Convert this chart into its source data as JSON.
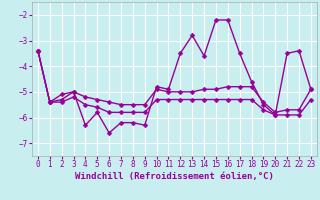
{
  "xlabel": "Windchill (Refroidissement éolien,°C)",
  "ylabel": "",
  "background_color": "#c8eef0",
  "grid_color": "#ffffff",
  "line_color": "#990099",
  "x_values": [
    0,
    1,
    2,
    3,
    4,
    5,
    6,
    7,
    8,
    9,
    10,
    11,
    12,
    13,
    14,
    15,
    16,
    17,
    18,
    19,
    20,
    21,
    22,
    23
  ],
  "line1": [
    -3.4,
    -5.4,
    -5.3,
    -5.0,
    -6.3,
    -5.8,
    -6.6,
    -6.2,
    -6.2,
    -6.3,
    -4.8,
    -4.9,
    -3.5,
    -2.8,
    -3.6,
    -2.2,
    -2.2,
    -3.5,
    -4.6,
    -5.5,
    -5.9,
    -3.5,
    -3.4,
    -4.9
  ],
  "line2": [
    -3.4,
    -5.4,
    -5.1,
    -5.0,
    -5.2,
    -5.3,
    -5.4,
    -5.5,
    -5.5,
    -5.5,
    -4.9,
    -5.0,
    -5.0,
    -5.0,
    -4.9,
    -4.9,
    -4.8,
    -4.8,
    -4.8,
    -5.4,
    -5.8,
    -5.7,
    -5.7,
    -4.9
  ],
  "line3": [
    -3.4,
    -5.4,
    -5.4,
    -5.2,
    -5.5,
    -5.6,
    -5.8,
    -5.8,
    -5.8,
    -5.8,
    -5.3,
    -5.3,
    -5.3,
    -5.3,
    -5.3,
    -5.3,
    -5.3,
    -5.3,
    -5.3,
    -5.7,
    -5.9,
    -5.9,
    -5.9,
    -5.3
  ],
  "ylim": [
    -7.5,
    -1.5
  ],
  "xlim": [
    -0.5,
    23.5
  ],
  "yticks": [
    -7,
    -6,
    -5,
    -4,
    -3,
    -2
  ],
  "xticks": [
    0,
    1,
    2,
    3,
    4,
    5,
    6,
    7,
    8,
    9,
    10,
    11,
    12,
    13,
    14,
    15,
    16,
    17,
    18,
    19,
    20,
    21,
    22,
    23
  ],
  "marker": "D",
  "markersize": 2.5,
  "linewidth": 1.0,
  "tick_fontsize": 5.5,
  "xlabel_fontsize": 6.5,
  "spine_color": "#aaaaaa"
}
